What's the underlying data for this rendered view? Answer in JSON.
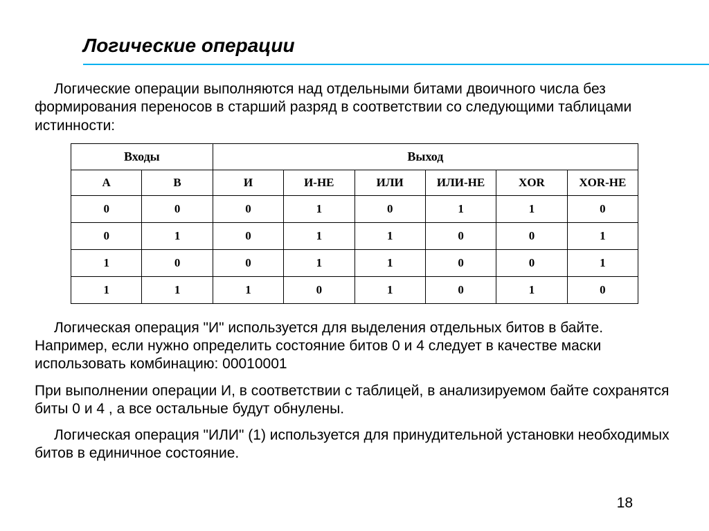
{
  "title": "Логические операции",
  "rule_color": "#00b0f0",
  "para1": "Логические операции выполняются над отдельными битами двоичного числа без формирования переносов в старший разряд в соответствии со следующими таблицами истинности:",
  "table": {
    "group_headers": [
      "Входы",
      "Выход"
    ],
    "columns": [
      "A",
      "B",
      "И",
      "И-НЕ",
      "ИЛИ",
      "ИЛИ-НЕ",
      "XOR",
      "XOR-НЕ"
    ],
    "rows": [
      [
        "0",
        "0",
        "0",
        "1",
        "0",
        "1",
        "1",
        "0"
      ],
      [
        "0",
        "1",
        "0",
        "1",
        "1",
        "0",
        "0",
        "1"
      ],
      [
        "1",
        "0",
        "0",
        "1",
        "1",
        "0",
        "0",
        "1"
      ],
      [
        "1",
        "1",
        "1",
        "0",
        "1",
        "0",
        "1",
        "0"
      ]
    ],
    "border_color": "#000000",
    "cell_font": "Times New Roman",
    "cell_fontsize": 17,
    "header_fontsize": 18
  },
  "para2": "Логическая операция \"И\" используется для выделения отдельных битов в байте. Например, если нужно определить состояние битов 0 и 4 следует в качестве маски использовать комбинацию: 00010001",
  "para2b": "При выполнении операции И, в соответствии с таблицей, в анализируемом байте сохранятся биты 0 и 4 , а все остальные будут обнулены.",
  "para3": "Логическая операция \"ИЛИ\" (1) используется для принудительной установки необходимых битов в единичное состояние.",
  "page_number": "18",
  "body_fontsize": 21,
  "title_fontsize": 28
}
